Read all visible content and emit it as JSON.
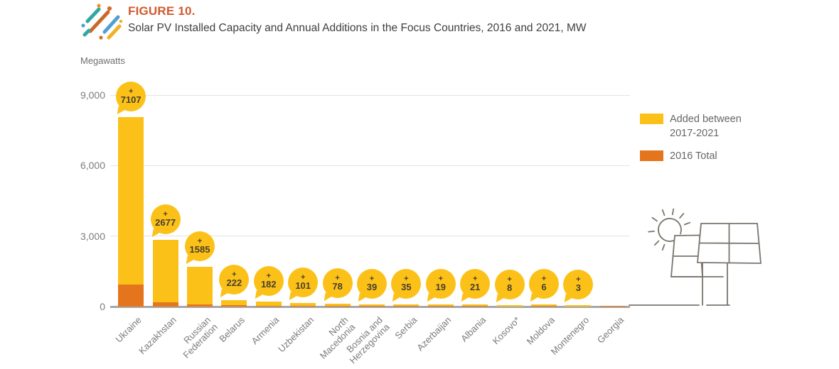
{
  "header": {
    "figure_label": "FIGURE 10.",
    "title": "Solar PV Installed Capacity and Annual Additions in the Focus Countries, 2016 and 2021, MW"
  },
  "axis_unit_label": "Megawatts",
  "legend": [
    {
      "label": "Added between\n2017-2021",
      "color": "#FCC119"
    },
    {
      "label": "2016 Total",
      "color": "#E5751D"
    }
  ],
  "colors": {
    "added_yellow": "#FCC119",
    "total_2016_orange": "#E5751D",
    "figure_label_orange": "#D15A2E"
  },
  "icons": {
    "logo": "scatter-dash-logo",
    "illustration": "solar-panels-with-sun-line-drawing"
  },
  "chart_data": {
    "type": "bar",
    "stacked": true,
    "title": "Solar PV Installed Capacity and Annual Additions in the Focus Countries, 2016 and 2021, MW",
    "ylabel": "Megawatts",
    "ylim": [
      0,
      9000
    ],
    "grid": true,
    "legend_position": "right",
    "yticks": [
      {
        "value": 0,
        "label": "0"
      },
      {
        "value": 3000,
        "label": "3,000"
      },
      {
        "value": 6000,
        "label": "6,000"
      },
      {
        "value": 9000,
        "label": "9,000"
      }
    ],
    "categories": [
      "Ukraine",
      "Kazakhstan",
      "Russian\nFederation",
      "Belarus",
      "Armenia",
      "Uzbekistan",
      "North\nMacedonia",
      "Bosnia and\nHerzegovina",
      "Serbia",
      "Azerbaijan",
      "Albania",
      "Kosovo*",
      "Moldova",
      "Montenegro",
      "Georgia"
    ],
    "series": [
      {
        "name": "2016 Total",
        "color": "#E5751D",
        "values": [
          950,
          170,
          100,
          50,
          10,
          4,
          17,
          16,
          11,
          35,
          1,
          0,
          25,
          0,
          4
        ]
      },
      {
        "name": "Added between 2017-2021",
        "color": "#FCC119",
        "values": [
          7107,
          2677,
          1585,
          222,
          182,
          101,
          78,
          39,
          35,
          19,
          21,
          8,
          6,
          3,
          0
        ]
      }
    ],
    "bubble_labels": [
      "7107",
      "2677",
      "1585",
      "222",
      "182",
      "101",
      "78",
      "39",
      "35",
      "19",
      "21",
      "8",
      "6",
      "3",
      null
    ]
  }
}
